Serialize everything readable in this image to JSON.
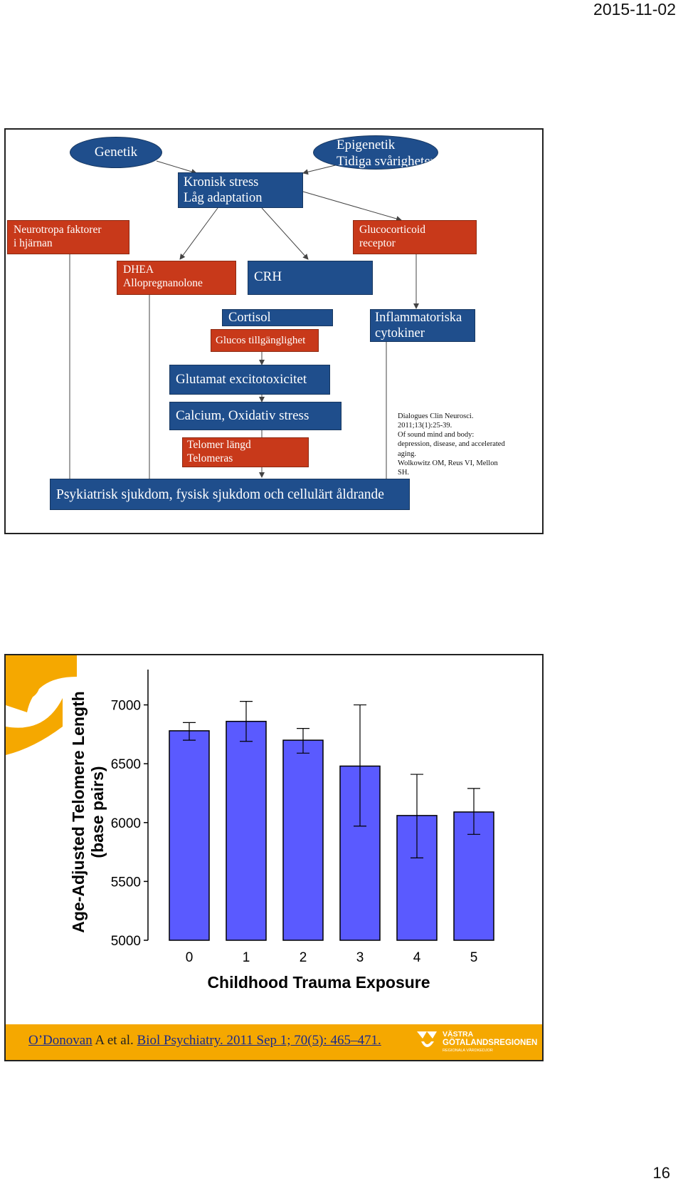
{
  "header": {
    "date": "2015-11-02"
  },
  "page_number": "16",
  "diagram": {
    "genetik": "Genetik",
    "epigenetik": [
      "Epigenetik",
      "Tidiga svårigheter"
    ],
    "kronisk_stress": [
      "Kronisk stress",
      "Låg adaptation"
    ],
    "neurotropa": [
      "Neurotropa faktorer",
      "i hjärnan"
    ],
    "glucocorticoid": [
      "Glucocorticoid",
      "receptor"
    ],
    "dhea": [
      "DHEA",
      "Allopregnanolone"
    ],
    "crh": "CRH",
    "cortisol": "Cortisol",
    "glucos": "Glucos tillgänglighet",
    "inflammatoriska": [
      "Inflammatoriska",
      "cytokiner"
    ],
    "glutamat": "Glutamat excitotoxicitet",
    "calcium": "Calcium,  Oxidativ stress",
    "telomer": [
      "Telomer längd",
      "Telomeras"
    ],
    "psykiatrisk": "Psykiatrisk sjukdom, fysisk sjukdom och cellulärt åldrande",
    "citation": "Dialogues Clin Neurosci.\n2011;13(1):25-39.\nOf sound mind and body:\ndepression, disease, and accelerated\naging.\nWolkowitz OM, Reus VI, Mellon\nSH.",
    "colors": {
      "blue": "#1f4e8c",
      "red": "#c8391a"
    }
  },
  "chart_data": {
    "type": "bar",
    "categories": [
      "0",
      "1",
      "2",
      "3",
      "4",
      "5"
    ],
    "values": [
      6780,
      6860,
      6700,
      6480,
      6060,
      6090
    ],
    "error_low": [
      6700,
      6690,
      6590,
      5970,
      5700,
      5900
    ],
    "error_high": [
      6850,
      7030,
      6800,
      7000,
      6410,
      6290
    ],
    "ylim": [
      5000,
      7300
    ],
    "yticks": [
      5000,
      5500,
      6000,
      6500,
      7000
    ],
    "xlabel": "Childhood Trauma Exposure",
    "ylabel": [
      "Age-Adjusted Telomere Length",
      "(base pairs)"
    ],
    "bar_color": "#5a5aff",
    "grid": false
  },
  "footer": {
    "ref_author": "O’Donovan",
    "ref_mid": " A et al. ",
    "ref_journal": "Biol Psychiatry. 2011 Sep 1; 70(5): 465–471. ",
    "logo_line1": "VÄSTRA",
    "logo_line2": "GÖTALANDSREGIONEN",
    "logo_line3": "REGIONALA VÅRDKEDJOR",
    "accent_color": "#f5a800"
  }
}
